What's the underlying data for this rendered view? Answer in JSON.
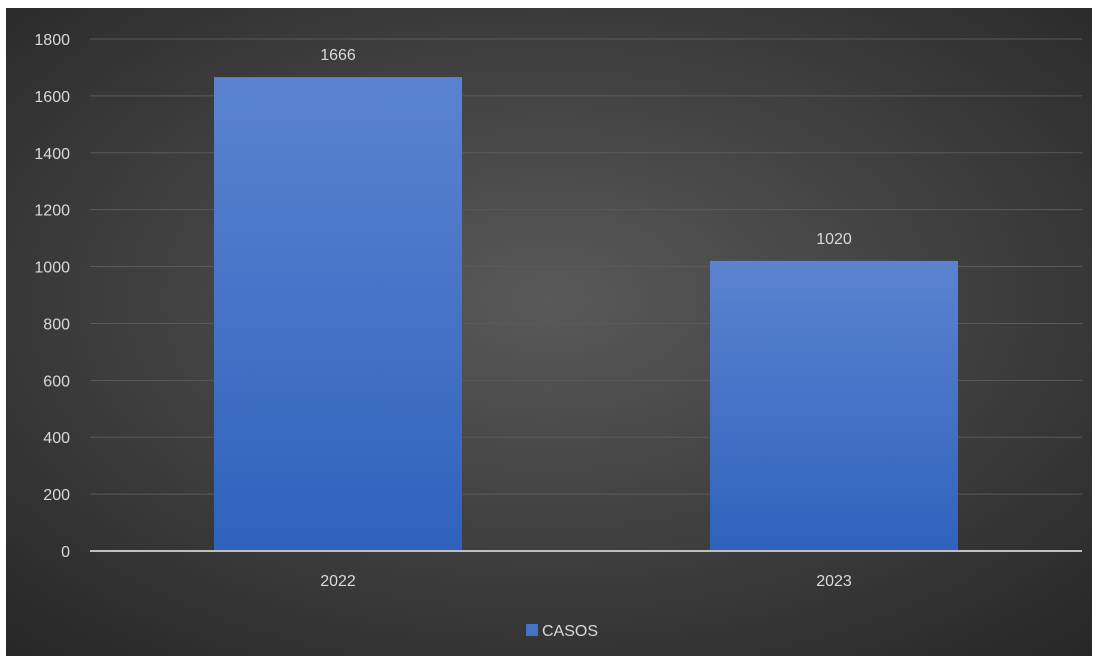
{
  "chart_data": {
    "type": "bar",
    "categories": [
      "2022",
      "2023"
    ],
    "series": [
      {
        "name": "CASOS",
        "values": [
          1666,
          1020
        ]
      }
    ],
    "data_labels": [
      "1666",
      "1020"
    ],
    "y_ticks": [
      "0",
      "200",
      "400",
      "600",
      "800",
      "1000",
      "1200",
      "1400",
      "1600",
      "1800"
    ],
    "ylim": [
      0,
      1800
    ],
    "grid": true,
    "legend_position": "bottom",
    "colors": {
      "bar": "#4472c4",
      "background": "#404040",
      "text": "#d9d9d9",
      "gridline": "#5a5a5a"
    }
  }
}
